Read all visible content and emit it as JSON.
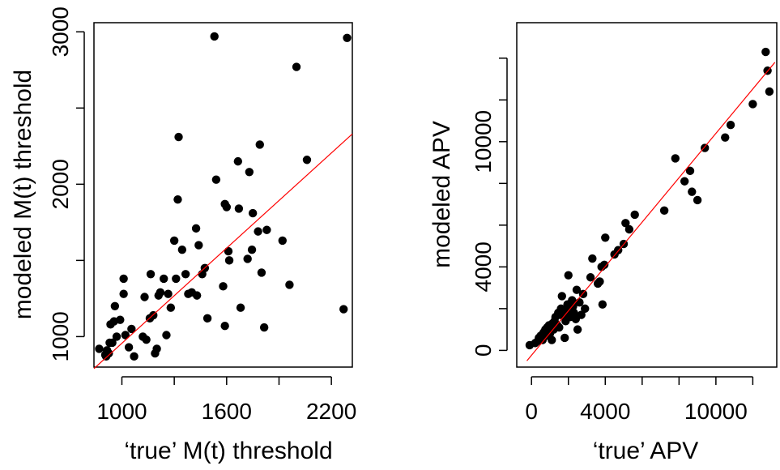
{
  "chart_data": [
    {
      "type": "scatter",
      "title": "",
      "xlabel": "‘true’ M(t) threshold",
      "ylabel": "modeled M(t) threshold",
      "xlim": [
        840,
        2320
      ],
      "ylim": [
        800,
        3060
      ],
      "xticks": [
        1000,
        1600,
        2200
      ],
      "xtick_labels": [
        "1000",
        "1600",
        "2200"
      ],
      "xticks_minor": [
        1000,
        1300,
        1600,
        1900,
        2200
      ],
      "yticks": [
        1000,
        2000,
        3000
      ],
      "ytick_labels": [
        "1000",
        "2000",
        "3000"
      ],
      "yticks_minor": [
        1000,
        1500,
        2000,
        2500,
        3000
      ],
      "grid": false,
      "point_color": "#000000",
      "line_color": "#ff0000",
      "fit_line": {
        "x": [
          840,
          2320
        ],
        "y": [
          790,
          2330
        ]
      },
      "points": [
        [
          870,
          920
        ],
        [
          905,
          880
        ],
        [
          910,
          870
        ],
        [
          915,
          910
        ],
        [
          925,
          890
        ],
        [
          930,
          960
        ],
        [
          935,
          1080
        ],
        [
          945,
          960
        ],
        [
          955,
          1100
        ],
        [
          960,
          1200
        ],
        [
          970,
          1000
        ],
        [
          990,
          1110
        ],
        [
          1010,
          1280
        ],
        [
          1010,
          1380
        ],
        [
          1020,
          1010
        ],
        [
          1040,
          930
        ],
        [
          1055,
          1050
        ],
        [
          1070,
          870
        ],
        [
          1120,
          1000
        ],
        [
          1130,
          1260
        ],
        [
          1140,
          980
        ],
        [
          1160,
          1120
        ],
        [
          1165,
          1410
        ],
        [
          1180,
          1140
        ],
        [
          1190,
          890
        ],
        [
          1200,
          920
        ],
        [
          1210,
          1270
        ],
        [
          1220,
          1290
        ],
        [
          1240,
          1380
        ],
        [
          1255,
          1010
        ],
        [
          1265,
          1280
        ],
        [
          1280,
          1190
        ],
        [
          1300,
          1630
        ],
        [
          1310,
          1380
        ],
        [
          1320,
          1900
        ],
        [
          1325,
          2310
        ],
        [
          1345,
          1570
        ],
        [
          1365,
          1410
        ],
        [
          1380,
          1280
        ],
        [
          1400,
          1290
        ],
        [
          1425,
          1710
        ],
        [
          1430,
          1270
        ],
        [
          1440,
          1600
        ],
        [
          1460,
          1410
        ],
        [
          1475,
          1450
        ],
        [
          1490,
          1120
        ],
        [
          1530,
          2970
        ],
        [
          1540,
          2030
        ],
        [
          1580,
          1330
        ],
        [
          1590,
          1070
        ],
        [
          1590,
          1870
        ],
        [
          1600,
          1850
        ],
        [
          1610,
          1560
        ],
        [
          1615,
          1500
        ],
        [
          1665,
          2150
        ],
        [
          1670,
          1840
        ],
        [
          1680,
          1190
        ],
        [
          1720,
          1510
        ],
        [
          1730,
          2080
        ],
        [
          1745,
          1570
        ],
        [
          1750,
          1810
        ],
        [
          1780,
          1690
        ],
        [
          1790,
          2260
        ],
        [
          1800,
          1420
        ],
        [
          1815,
          1060
        ],
        [
          1830,
          1700
        ],
        [
          1920,
          1630
        ],
        [
          1960,
          1340
        ],
        [
          2000,
          2770
        ],
        [
          2060,
          2160
        ],
        [
          2270,
          1180
        ],
        [
          2290,
          2960
        ]
      ]
    },
    {
      "type": "scatter",
      "title": "",
      "xlabel": "‘true’ APV",
      "ylabel": "modeled APV",
      "xlim": [
        -800,
        13300
      ],
      "ylim": [
        -800,
        15700
      ],
      "xticks": [
        0,
        4000,
        10000
      ],
      "xtick_labels": [
        "0",
        "4000",
        "10000"
      ],
      "xticks_minor": [
        0,
        2000,
        4000,
        6000,
        8000,
        10000,
        12000
      ],
      "yticks": [
        0,
        4000,
        10000
      ],
      "ytick_labels": [
        "0",
        "4000",
        "10000"
      ],
      "yticks_minor": [
        0,
        2000,
        4000,
        6000,
        8000,
        10000,
        12000,
        14000
      ],
      "grid": false,
      "point_color": "#000000",
      "line_color": "#ff0000",
      "fit_line": {
        "x": [
          -250,
          13200
        ],
        "y": [
          -500,
          13800
        ]
      },
      "points": [
        [
          -100,
          250
        ],
        [
          200,
          350
        ],
        [
          350,
          450
        ],
        [
          400,
          600
        ],
        [
          500,
          700
        ],
        [
          600,
          500
        ],
        [
          650,
          850
        ],
        [
          700,
          900
        ],
        [
          750,
          1000
        ],
        [
          800,
          700
        ],
        [
          850,
          1100
        ],
        [
          900,
          900
        ],
        [
          950,
          1200
        ],
        [
          1000,
          800
        ],
        [
          1050,
          1100
        ],
        [
          1100,
          500
        ],
        [
          1150,
          1300
        ],
        [
          1200,
          1000
        ],
        [
          1250,
          1400
        ],
        [
          1300,
          1600
        ],
        [
          1400,
          1200
        ],
        [
          1450,
          1800
        ],
        [
          1500,
          1100
        ],
        [
          1550,
          1700
        ],
        [
          1600,
          2000
        ],
        [
          1650,
          2600
        ],
        [
          1700,
          1700
        ],
        [
          1800,
          600
        ],
        [
          1850,
          1400
        ],
        [
          1900,
          1900
        ],
        [
          1950,
          2200
        ],
        [
          2000,
          3600
        ],
        [
          2100,
          1600
        ],
        [
          2200,
          2400
        ],
        [
          2250,
          2100
        ],
        [
          2300,
          1800
        ],
        [
          2400,
          1500
        ],
        [
          2450,
          2900
        ],
        [
          2500,
          1000
        ],
        [
          2600,
          2300
        ],
        [
          2700,
          1700
        ],
        [
          2800,
          2700
        ],
        [
          2900,
          2000
        ],
        [
          3200,
          3500
        ],
        [
          3300,
          4400
        ],
        [
          3600,
          3200
        ],
        [
          3700,
          3300
        ],
        [
          3800,
          4000
        ],
        [
          3850,
          2200
        ],
        [
          3950,
          4100
        ],
        [
          4000,
          5400
        ],
        [
          4500,
          4600
        ],
        [
          4700,
          4800
        ],
        [
          5000,
          5100
        ],
        [
          5100,
          6100
        ],
        [
          5300,
          5800
        ],
        [
          5600,
          6500
        ],
        [
          7200,
          6700
        ],
        [
          7800,
          9200
        ],
        [
          8300,
          8100
        ],
        [
          8600,
          8600
        ],
        [
          8700,
          7600
        ],
        [
          9000,
          7200
        ],
        [
          9400,
          9700
        ],
        [
          10500,
          10200
        ],
        [
          10800,
          10800
        ],
        [
          12000,
          11800
        ],
        [
          12700,
          14300
        ],
        [
          12800,
          13400
        ],
        [
          12900,
          12400
        ]
      ]
    }
  ]
}
